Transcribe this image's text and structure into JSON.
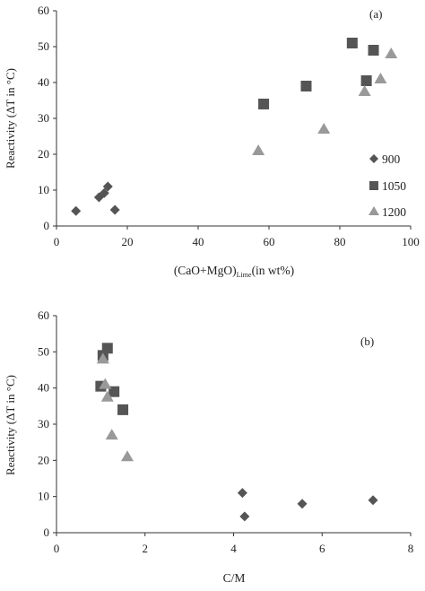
{
  "chart_data": [
    {
      "type": "scatter",
      "panel_label": "(a)",
      "xlabel_main": "(CaO+MgO)",
      "xlabel_sub": "Lime",
      "xlabel_tail": "(in wt%)",
      "ylabel": "Reactivity (ΔT in °C)",
      "xlim": [
        0,
        100
      ],
      "ylim": [
        0,
        60
      ],
      "xticks": [
        0,
        20,
        40,
        60,
        80,
        100
      ],
      "yticks": [
        0,
        10,
        20,
        30,
        40,
        50,
        60
      ],
      "legend_position": "right",
      "series": [
        {
          "name": "900",
          "marker": "diamond",
          "color": "#555555",
          "x": [
            5.5,
            12,
            13.5,
            14.5,
            16.5
          ],
          "y": [
            4.2,
            8,
            9.2,
            11,
            4.5
          ]
        },
        {
          "name": "1050",
          "marker": "square",
          "color": "#555555",
          "x": [
            58.5,
            70.5,
            83.5,
            87.5,
            89.5
          ],
          "y": [
            34,
            39,
            51,
            40.5,
            49
          ]
        },
        {
          "name": "1200",
          "marker": "triangle",
          "color": "#999999",
          "x": [
            57,
            75.5,
            87,
            91.5,
            94.5
          ],
          "y": [
            21,
            27,
            37.5,
            41,
            48
          ]
        }
      ]
    },
    {
      "type": "scatter",
      "panel_label": "(b)",
      "xlabel": "C/M",
      "ylabel": "Reactivity (ΔT in °C)",
      "xlim": [
        0,
        8
      ],
      "ylim": [
        0,
        60
      ],
      "xticks": [
        0,
        2,
        4,
        6,
        8
      ],
      "yticks": [
        0,
        10,
        20,
        30,
        40,
        50,
        60
      ],
      "series": [
        {
          "marker": "diamond",
          "color": "#555555",
          "x": [
            4.2,
            4.25,
            5.55,
            7.15
          ],
          "y": [
            11,
            4.5,
            8,
            9
          ]
        },
        {
          "marker": "square",
          "color": "#555555",
          "x": [
            1.0,
            1.05,
            1.15,
            1.3,
            1.5
          ],
          "y": [
            40.5,
            49,
            51,
            39,
            34
          ]
        },
        {
          "marker": "triangle",
          "color": "#999999",
          "x": [
            1.05,
            1.1,
            1.15,
            1.25,
            1.6
          ],
          "y": [
            48,
            41,
            37.5,
            27,
            21
          ]
        }
      ]
    }
  ]
}
